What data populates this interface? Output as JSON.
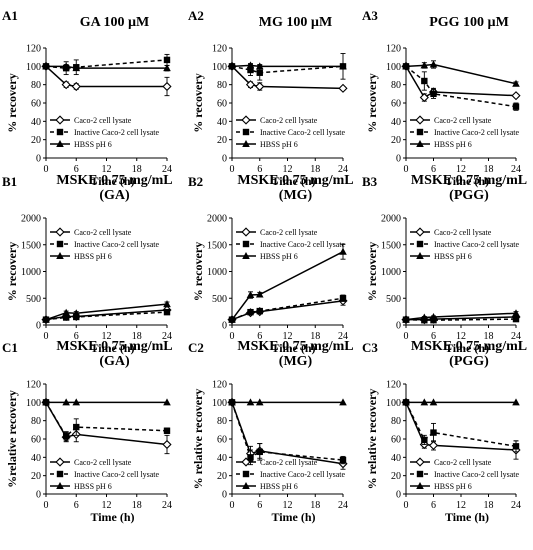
{
  "legend": [
    "Caco-2 cell lysate",
    "Inactive Caco-2 cell lysate",
    "HBSS pH 6"
  ],
  "chart_data": [
    {
      "panel": "A1",
      "type": "line",
      "title": [
        "GA 100 µM"
      ],
      "xlabel": "Time (h)",
      "ylabel": "% recovery",
      "xlim": [
        0,
        24
      ],
      "xticks": [
        0,
        6,
        12,
        18,
        24
      ],
      "ylim": [
        0,
        120
      ],
      "yticks": [
        0,
        20,
        40,
        60,
        80,
        100,
        120
      ],
      "legend_placement": "bottom-left",
      "series": [
        {
          "name": "Caco-2 cell lysate",
          "x": [
            0,
            4,
            6,
            24
          ],
          "y": [
            100,
            80,
            78,
            78
          ],
          "err": [
            0,
            3,
            3,
            10
          ]
        },
        {
          "name": "Inactive Caco-2 cell lysate",
          "x": [
            0,
            4,
            6,
            24
          ],
          "y": [
            100,
            98,
            99,
            107
          ],
          "err": [
            0,
            7,
            8,
            6
          ]
        },
        {
          "name": "HBSS pH 6",
          "x": [
            0,
            4,
            6,
            24
          ],
          "y": [
            100,
            100,
            98,
            98
          ],
          "err": [
            0,
            2,
            2,
            3
          ]
        }
      ]
    },
    {
      "panel": "A2",
      "type": "line",
      "title": [
        "MG 100 µM"
      ],
      "xlabel": "Time (h)",
      "ylabel": "% recovery",
      "xlim": [
        0,
        24
      ],
      "xticks": [
        0,
        6,
        12,
        18,
        24
      ],
      "ylim": [
        0,
        120
      ],
      "yticks": [
        0,
        20,
        40,
        60,
        80,
        100,
        120
      ],
      "legend_placement": "bottom-left",
      "series": [
        {
          "name": "Caco-2 cell lysate",
          "x": [
            0,
            4,
            6,
            24
          ],
          "y": [
            100,
            80,
            78,
            76
          ],
          "err": [
            0,
            3,
            4,
            2
          ]
        },
        {
          "name": "Inactive Caco-2 cell lysate",
          "x": [
            0,
            4,
            6,
            24
          ],
          "y": [
            100,
            96,
            93,
            100
          ],
          "err": [
            0,
            6,
            8,
            14
          ]
        },
        {
          "name": "HBSS pH 6",
          "x": [
            0,
            4,
            6,
            24
          ],
          "y": [
            100,
            101,
            100,
            100
          ],
          "err": [
            0,
            2,
            2,
            2
          ]
        }
      ]
    },
    {
      "panel": "A3",
      "type": "line",
      "title": [
        "PGG 100 µM"
      ],
      "xlabel": "Time (h)",
      "ylabel": "% recovery",
      "xlim": [
        0,
        24
      ],
      "xticks": [
        0,
        6,
        12,
        18,
        24
      ],
      "ylim": [
        0,
        120
      ],
      "yticks": [
        0,
        20,
        40,
        60,
        80,
        100,
        120
      ],
      "legend_placement": "bottom-left",
      "series": [
        {
          "name": "Caco-2 cell lysate",
          "x": [
            0,
            4,
            6,
            24
          ],
          "y": [
            100,
            66,
            72,
            68
          ],
          "err": [
            0,
            4,
            4,
            2
          ]
        },
        {
          "name": "Inactive Caco-2 cell lysate",
          "x": [
            0,
            4,
            6,
            24
          ],
          "y": [
            100,
            84,
            70,
            56
          ],
          "err": [
            0,
            10,
            5,
            4
          ]
        },
        {
          "name": "HBSS pH 6",
          "x": [
            0,
            4,
            6,
            24
          ],
          "y": [
            100,
            101,
            102,
            81
          ],
          "err": [
            0,
            3,
            4,
            2
          ]
        }
      ]
    },
    {
      "panel": "B1",
      "type": "line",
      "title": [
        "MSKE 0.75 mg/mL",
        "(GA)"
      ],
      "xlabel": "Time (h)",
      "ylabel": "% recovery",
      "xlim": [
        0,
        24
      ],
      "xticks": [
        0,
        6,
        12,
        18,
        24
      ],
      "ylim": [
        0,
        2000
      ],
      "yticks": [
        0,
        500,
        1000,
        1500,
        2000
      ],
      "legend_placement": "top-left",
      "series": [
        {
          "name": "Caco-2 cell lysate",
          "x": [
            0,
            4,
            6,
            24
          ],
          "y": [
            100,
            160,
            160,
            280
          ],
          "err": [
            0,
            30,
            30,
            40
          ]
        },
        {
          "name": "Inactive Caco-2 cell lysate",
          "x": [
            0,
            4,
            6,
            24
          ],
          "y": [
            100,
            140,
            150,
            240
          ],
          "err": [
            0,
            20,
            20,
            30
          ]
        },
        {
          "name": "HBSS pH 6",
          "x": [
            0,
            4,
            6,
            24
          ],
          "y": [
            100,
            230,
            220,
            390
          ],
          "err": [
            0,
            30,
            30,
            40
          ]
        }
      ]
    },
    {
      "panel": "B2",
      "type": "line",
      "title": [
        "MSKE 0.75 mg/mL",
        "(MG)"
      ],
      "xlabel": "Time (h)",
      "ylabel": "% recovery",
      "xlim": [
        0,
        24
      ],
      "xticks": [
        0,
        6,
        12,
        18,
        24
      ],
      "ylim": [
        0,
        2000
      ],
      "yticks": [
        0,
        500,
        1000,
        1500,
        2000
      ],
      "legend_placement": "top-left",
      "series": [
        {
          "name": "Caco-2 cell lysate",
          "x": [
            0,
            4,
            6,
            24
          ],
          "y": [
            100,
            230,
            250,
            450
          ],
          "err": [
            0,
            30,
            40,
            80
          ]
        },
        {
          "name": "Inactive Caco-2 cell lysate",
          "x": [
            0,
            4,
            6,
            24
          ],
          "y": [
            100,
            240,
            260,
            500
          ],
          "err": [
            0,
            30,
            40,
            60
          ]
        },
        {
          "name": "HBSS pH 6",
          "x": [
            0,
            4,
            6,
            24
          ],
          "y": [
            100,
            560,
            570,
            1370
          ],
          "err": [
            0,
            60,
            40,
            140
          ]
        }
      ]
    },
    {
      "panel": "B3",
      "type": "line",
      "title": [
        "MSKE 0.75 mg/mL",
        "(PGG)"
      ],
      "xlabel": "Time (h)",
      "ylabel": "% recovery",
      "xlim": [
        0,
        24
      ],
      "xticks": [
        0,
        6,
        12,
        18,
        24
      ],
      "ylim": [
        0,
        2000
      ],
      "yticks": [
        0,
        500,
        1000,
        1500,
        2000
      ],
      "legend_placement": "top-left",
      "series": [
        {
          "name": "Caco-2 cell lysate",
          "x": [
            0,
            4,
            6,
            24
          ],
          "y": [
            100,
            100,
            110,
            150
          ],
          "err": [
            0,
            15,
            15,
            20
          ]
        },
        {
          "name": "Inactive Caco-2 cell lysate",
          "x": [
            0,
            4,
            6,
            24
          ],
          "y": [
            100,
            90,
            90,
            110
          ],
          "err": [
            0,
            15,
            15,
            20
          ]
        },
        {
          "name": "HBSS pH 6",
          "x": [
            0,
            4,
            6,
            24
          ],
          "y": [
            100,
            140,
            150,
            220
          ],
          "err": [
            0,
            20,
            20,
            30
          ]
        }
      ]
    },
    {
      "panel": "C1",
      "type": "line",
      "title": [
        "MSKE 0.75 mg/mL",
        "(GA)"
      ],
      "xlabel": "Time (h)",
      "ylabel": "%relative recovery",
      "xlim": [
        0,
        24
      ],
      "xticks": [
        0,
        6,
        12,
        18,
        24
      ],
      "ylim": [
        0,
        120
      ],
      "yticks": [
        0,
        20,
        40,
        60,
        80,
        100,
        120
      ],
      "legend_placement": "bottom-left",
      "series": [
        {
          "name": "Caco-2 cell lysate",
          "x": [
            0,
            4,
            6,
            24
          ],
          "y": [
            100,
            62,
            65,
            54
          ],
          "err": [
            0,
            5,
            8,
            10
          ]
        },
        {
          "name": "Inactive Caco-2 cell lysate",
          "x": [
            0,
            4,
            6,
            24
          ],
          "y": [
            100,
            63,
            73,
            69
          ],
          "err": [
            0,
            5,
            9,
            3
          ]
        },
        {
          "name": "HBSS pH 6",
          "x": [
            0,
            4,
            6,
            24
          ],
          "y": [
            100,
            100,
            100,
            100
          ],
          "err": [
            0,
            0,
            0,
            0
          ]
        }
      ]
    },
    {
      "panel": "C2",
      "type": "line",
      "title": [
        "MSKE 0.75 mg/mL",
        "(MG)"
      ],
      "xlabel": "Time (h)",
      "ylabel": "% relative recovery",
      "xlim": [
        0,
        24
      ],
      "xticks": [
        0,
        6,
        12,
        18,
        24
      ],
      "ylim": [
        0,
        120
      ],
      "yticks": [
        0,
        20,
        40,
        60,
        80,
        100,
        120
      ],
      "legend_placement": "bottom-left",
      "series": [
        {
          "name": "Caco-2 cell lysate",
          "x": [
            0,
            4,
            6,
            24
          ],
          "y": [
            100,
            44,
            47,
            33
          ],
          "err": [
            0,
            8,
            8,
            6
          ]
        },
        {
          "name": "Inactive Caco-2 cell lysate",
          "x": [
            0,
            4,
            6,
            24
          ],
          "y": [
            100,
            40,
            46,
            37
          ],
          "err": [
            0,
            8,
            9,
            4
          ]
        },
        {
          "name": "HBSS pH 6",
          "x": [
            0,
            4,
            6,
            24
          ],
          "y": [
            100,
            100,
            100,
            100
          ],
          "err": [
            0,
            0,
            0,
            0
          ]
        }
      ]
    },
    {
      "panel": "C3",
      "type": "line",
      "title": [
        "MSKE 0.75 mg/mL",
        "(PGG)"
      ],
      "xlabel": "Time (h)",
      "ylabel": "% relative recovery",
      "xlim": [
        0,
        24
      ],
      "xticks": [
        0,
        6,
        12,
        18,
        24
      ],
      "ylim": [
        0,
        120
      ],
      "yticks": [
        0,
        20,
        40,
        60,
        80,
        100,
        120
      ],
      "legend_placement": "bottom-left",
      "series": [
        {
          "name": "Caco-2 cell lysate",
          "x": [
            0,
            4,
            6,
            24
          ],
          "y": [
            100,
            54,
            53,
            48
          ],
          "err": [
            0,
            4,
            5,
            10
          ]
        },
        {
          "name": "Inactive Caco-2 cell lysate",
          "x": [
            0,
            4,
            6,
            24
          ],
          "y": [
            100,
            59,
            67,
            52
          ],
          "err": [
            0,
            5,
            10,
            6
          ]
        },
        {
          "name": "HBSS pH 6",
          "x": [
            0,
            4,
            6,
            24
          ],
          "y": [
            100,
            100,
            100,
            100
          ],
          "err": [
            0,
            0,
            0,
            0
          ]
        }
      ]
    }
  ]
}
